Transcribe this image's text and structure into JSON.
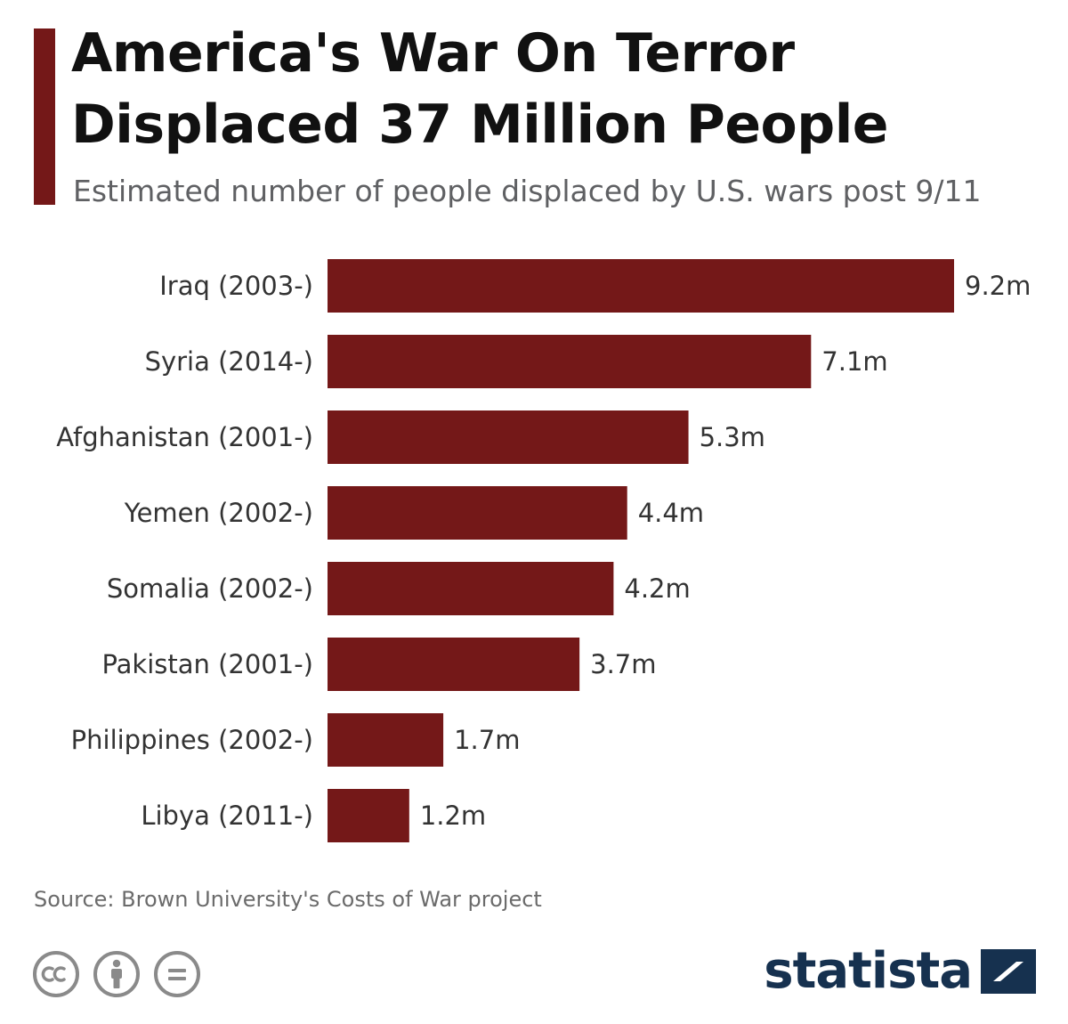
{
  "header": {
    "title": "America's War On Terror Displaced 37 Million People",
    "subtitle": "Estimated number of people displaced by U.S. wars post 9/11"
  },
  "chart_data": {
    "type": "bar",
    "orientation": "horizontal",
    "title": "America's War On Terror Displaced 37 Million People",
    "subtitle": "Estimated number of people displaced by U.S. wars post 9/11",
    "xlabel": "",
    "ylabel": "",
    "categories": [
      "Iraq (2003-)",
      "Syria (2014-)",
      "Afghanistan (2001-)",
      "Yemen (2002-)",
      "Somalia (2002-)",
      "Pakistan (2001-)",
      "Philippines (2002-)",
      "Libya (2011-)"
    ],
    "values": [
      9.2,
      7.1,
      5.3,
      4.4,
      4.2,
      3.7,
      1.7,
      1.2
    ],
    "value_labels": [
      "9.2m",
      "7.1m",
      "5.3m",
      "4.4m",
      "4.2m",
      "3.7m",
      "1.7m",
      "1.2m"
    ],
    "unit": "m",
    "xlim": [
      0,
      9.2
    ],
    "grid": false,
    "legend": "none",
    "bar_color": "#741818"
  },
  "footer": {
    "source": "Source: Brown University's Costs of War project",
    "license_icons": [
      "creative-commons-icon",
      "attribution-icon",
      "no-derivatives-icon"
    ],
    "brand": "statista"
  },
  "colors": {
    "accent": "#741818",
    "bar": "#741818",
    "title": "#111111",
    "subtitle": "#5f6063",
    "source": "#6b6b6b",
    "brand": "#16314f",
    "license_icon": "#8a8a8a"
  }
}
